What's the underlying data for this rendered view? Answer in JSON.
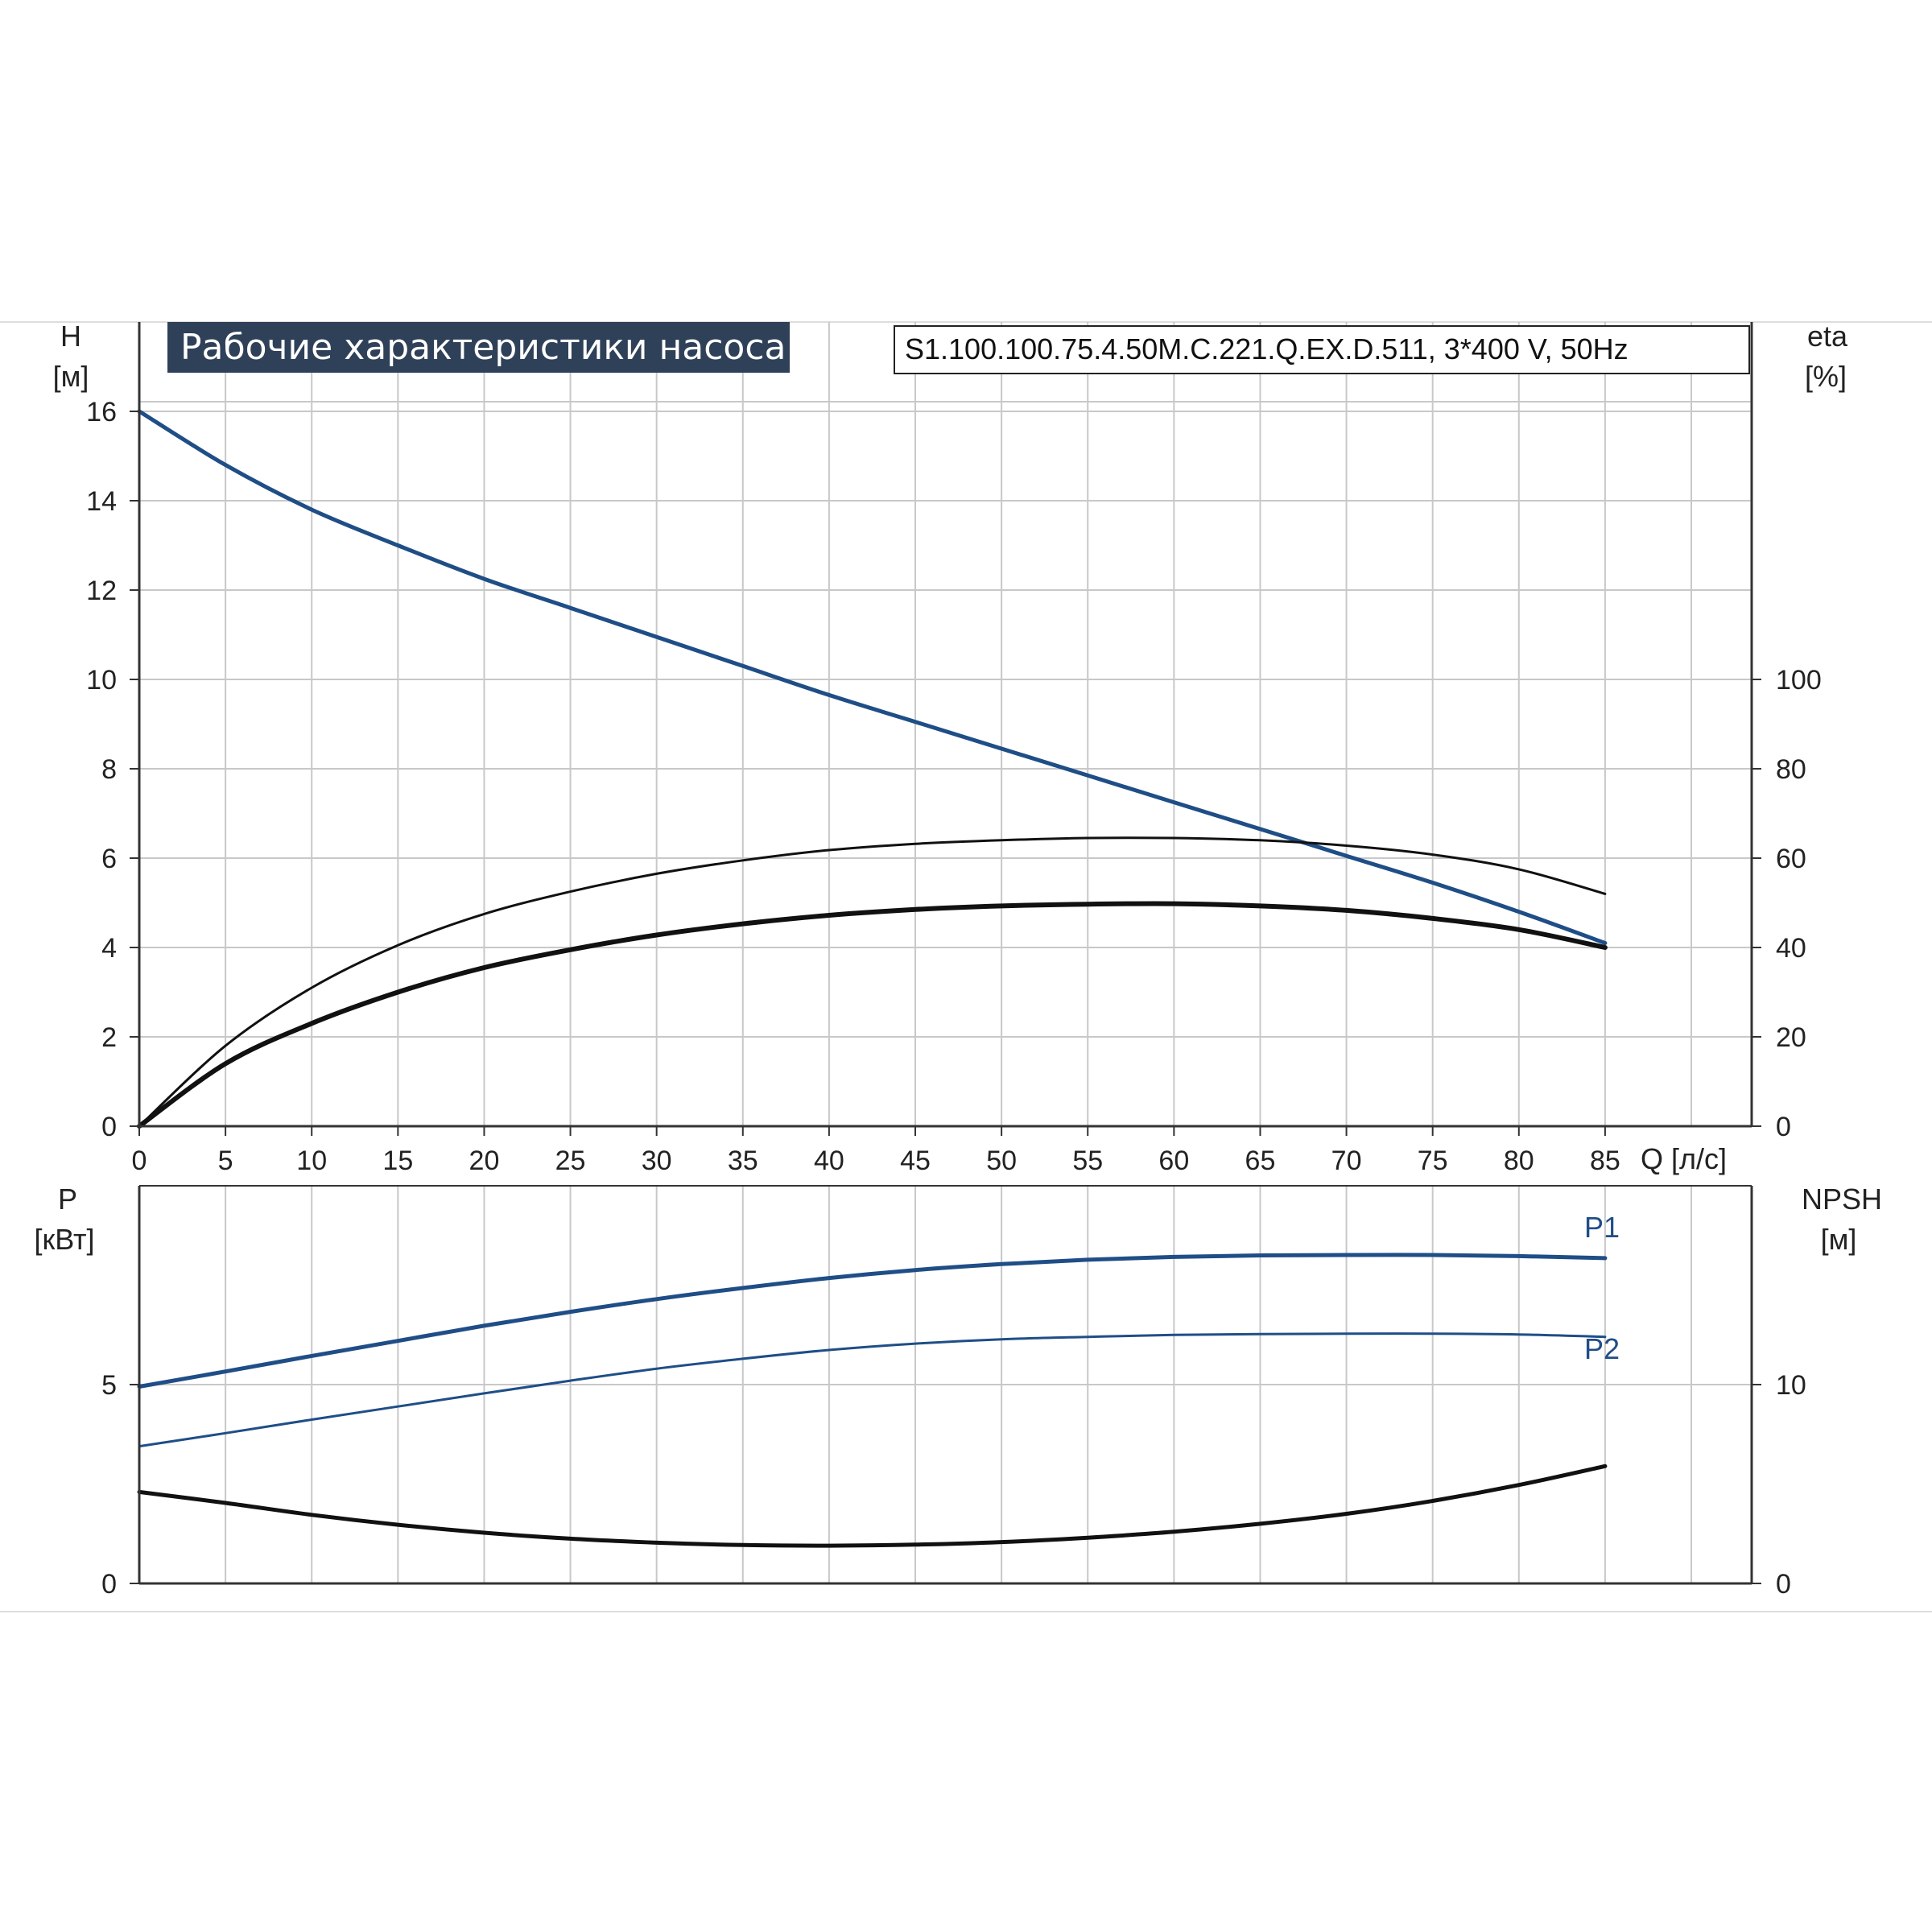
{
  "header": {
    "title": "Рабочие характеристики насоса",
    "model": "S1.100.100.75.4.50M.C.221.Q.EX.D.511, 3*400 V, 50Hz"
  },
  "colors": {
    "blue": "#1f4e87",
    "black": "#111111",
    "grid": "#c8c8c8",
    "title_bg": "#2f4158"
  },
  "chart_data": [
    {
      "type": "line",
      "x_label": "Q [л/с]",
      "y_left_label": "H",
      "y_left_unit": "[м]",
      "y_right_label": "eta",
      "y_right_unit": "[%]",
      "x_ticks": [
        "0",
        "5",
        "10",
        "15",
        "20",
        "25",
        "30",
        "35",
        "40",
        "45",
        "50",
        "55",
        "60",
        "65",
        "70",
        "75",
        "80",
        "85"
      ],
      "y_left_ticks": [
        "0",
        "2",
        "4",
        "6",
        "8",
        "10",
        "12",
        "14",
        "16"
      ],
      "y_right_ticks": [
        "0",
        "20",
        "40",
        "60",
        "80",
        "100"
      ],
      "xlim": [
        0,
        93.5
      ],
      "ylim_left": [
        0,
        18
      ],
      "ylim_right": [
        0,
        180
      ],
      "grid": true,
      "series": [
        {
          "id": "H",
          "axis": "left",
          "color": "#1f4e87",
          "width": 5,
          "x": [
            0,
            5,
            10,
            15,
            20,
            25,
            30,
            35,
            40,
            45,
            50,
            55,
            60,
            65,
            70,
            75,
            80,
            85
          ],
          "y": [
            16.0,
            14.8,
            13.8,
            13.0,
            12.25,
            11.6,
            10.95,
            10.3,
            9.65,
            9.05,
            8.45,
            7.85,
            7.25,
            6.65,
            6.05,
            5.45,
            4.8,
            4.1
          ]
        },
        {
          "id": "eta_upper",
          "axis": "right",
          "color": "#111111",
          "width": 3,
          "x": [
            0,
            5,
            10,
            15,
            20,
            25,
            30,
            35,
            40,
            45,
            50,
            55,
            60,
            65,
            70,
            75,
            80,
            85
          ],
          "y": [
            0,
            18,
            31,
            40.5,
            47.5,
            52.5,
            56.5,
            59.5,
            61.8,
            63.2,
            64.0,
            64.5,
            64.5,
            64.0,
            62.8,
            60.8,
            57.5,
            52.0
          ]
        },
        {
          "id": "eta_lower",
          "axis": "right",
          "color": "#111111",
          "width": 6,
          "x": [
            0,
            5,
            10,
            15,
            20,
            25,
            30,
            35,
            40,
            45,
            50,
            55,
            60,
            65,
            70,
            75,
            80,
            85
          ],
          "y": [
            0,
            14,
            23,
            30,
            35.5,
            39.5,
            42.8,
            45.3,
            47.2,
            48.5,
            49.3,
            49.7,
            49.8,
            49.3,
            48.3,
            46.5,
            44.0,
            40.0
          ]
        }
      ]
    },
    {
      "type": "line",
      "y_left_label": "P",
      "y_left_unit": "[кВт]",
      "y_right_label": "NPSH",
      "y_right_unit": "[м]",
      "x_ticks": [
        "0",
        "5",
        "10",
        "15",
        "20",
        "25",
        "30",
        "35",
        "40",
        "45",
        "50",
        "55",
        "60",
        "65",
        "70",
        "75",
        "80",
        "85"
      ],
      "y_left_ticks": [
        "0",
        "5"
      ],
      "y_right_ticks": [
        "0",
        "10"
      ],
      "xlim": [
        0,
        93.5
      ],
      "ylim_left": [
        0,
        10
      ],
      "ylim_right": [
        0,
        20
      ],
      "grid": true,
      "series": [
        {
          "id": "P1",
          "name": "P1",
          "axis": "left",
          "color": "#1f4e87",
          "width": 5,
          "x": [
            0,
            5,
            10,
            15,
            20,
            25,
            30,
            35,
            40,
            45,
            50,
            55,
            60,
            65,
            70,
            75,
            80,
            85
          ],
          "y": [
            4.95,
            5.33,
            5.72,
            6.1,
            6.48,
            6.83,
            7.15,
            7.43,
            7.68,
            7.88,
            8.03,
            8.14,
            8.21,
            8.25,
            8.26,
            8.26,
            8.23,
            8.18
          ]
        },
        {
          "id": "P2",
          "name": "P2",
          "axis": "left",
          "color": "#1f4e87",
          "width": 3,
          "x": [
            0,
            5,
            10,
            15,
            20,
            25,
            30,
            35,
            40,
            45,
            50,
            55,
            60,
            65,
            70,
            75,
            80,
            85
          ],
          "y": [
            3.45,
            3.78,
            4.12,
            4.45,
            4.78,
            5.1,
            5.4,
            5.65,
            5.87,
            6.03,
            6.14,
            6.2,
            6.25,
            6.27,
            6.28,
            6.28,
            6.26,
            6.2
          ]
        },
        {
          "id": "NPSH",
          "axis": "right",
          "color": "#111111",
          "width": 5,
          "x": [
            0,
            5,
            10,
            15,
            20,
            25,
            30,
            35,
            40,
            45,
            50,
            55,
            60,
            65,
            70,
            75,
            80,
            85
          ],
          "y": [
            4.6,
            4.05,
            3.45,
            2.95,
            2.55,
            2.25,
            2.05,
            1.93,
            1.9,
            1.95,
            2.08,
            2.3,
            2.6,
            3.0,
            3.5,
            4.15,
            4.95,
            5.9
          ]
        }
      ]
    }
  ]
}
